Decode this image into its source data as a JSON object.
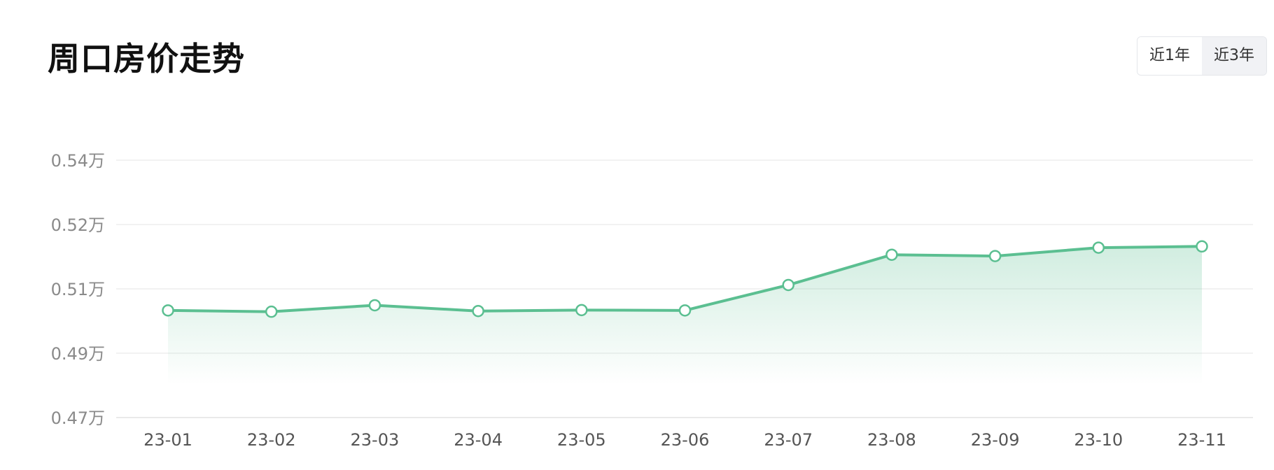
{
  "header": {
    "title": "周口房价走势"
  },
  "range_toggle": {
    "options": [
      {
        "label": "近1年",
        "active": false
      },
      {
        "label": "近3年",
        "active": true
      }
    ]
  },
  "colors": {
    "line": "#5bbf91",
    "point_fill": "#ffffff",
    "grid": "#eeeeee"
  },
  "chart_data": {
    "type": "area",
    "categories": [
      "23-01",
      "23-02",
      "23-03",
      "23-04",
      "23-05",
      "23-06",
      "23-07",
      "23-08",
      "23-09",
      "23-10",
      "23-11"
    ],
    "values": [
      0.5033,
      0.5029,
      0.5049,
      0.5031,
      0.5034,
      0.5033,
      0.5106,
      0.5153,
      0.5151,
      0.5164,
      0.5166
    ],
    "y_ticks": [
      {
        "value": 0.47,
        "label": "0.47万"
      },
      {
        "value": 0.49,
        "label": "0.49万"
      },
      {
        "value": 0.51,
        "label": "0.51万"
      },
      {
        "value": 0.52,
        "label": "0.52万"
      },
      {
        "value": 0.54,
        "label": "0.54万"
      }
    ],
    "grid": true,
    "legend": "none"
  }
}
